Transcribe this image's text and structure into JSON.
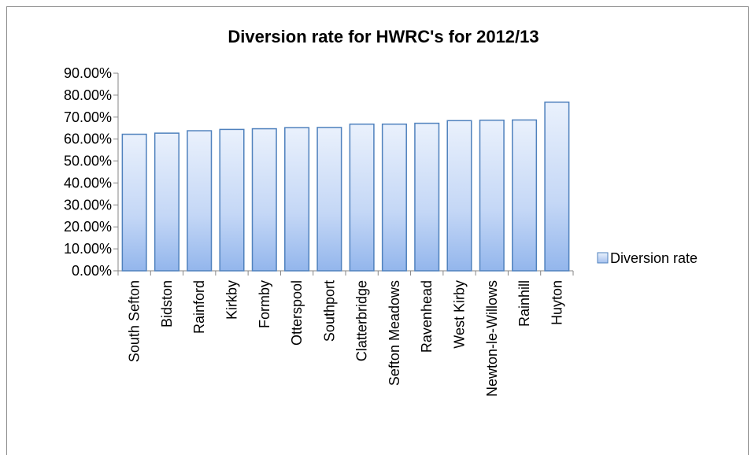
{
  "chart_data": {
    "type": "bar",
    "title": "Diversion rate for HWRC's for 2012/13",
    "xlabel": "",
    "ylabel": "",
    "ylim": [
      0,
      0.9
    ],
    "yticks": [
      "0.00%",
      "10.00%",
      "20.00%",
      "30.00%",
      "40.00%",
      "50.00%",
      "60.00%",
      "70.00%",
      "80.00%",
      "90.00%"
    ],
    "categories": [
      "South Sefton",
      "Bidston",
      "Rainford",
      "Kirkby",
      "Formby",
      "Otterspool",
      "Southport",
      "Clatterbridge",
      "Sefton Meadows",
      "Ravenhead",
      "West Kirby",
      "Newton-le-Willows",
      "Rainhill",
      "Huyton"
    ],
    "series": [
      {
        "name": "Diversion rate",
        "values": [
          0.622,
          0.627,
          0.638,
          0.644,
          0.647,
          0.652,
          0.653,
          0.668,
          0.668,
          0.672,
          0.684,
          0.686,
          0.687,
          0.768
        ]
      }
    ],
    "legend_position": "right",
    "grid": false,
    "colors": {
      "bar_fill": "#b8cef5",
      "bar_stroke": "#4f81bd",
      "axis": "#868686"
    }
  }
}
